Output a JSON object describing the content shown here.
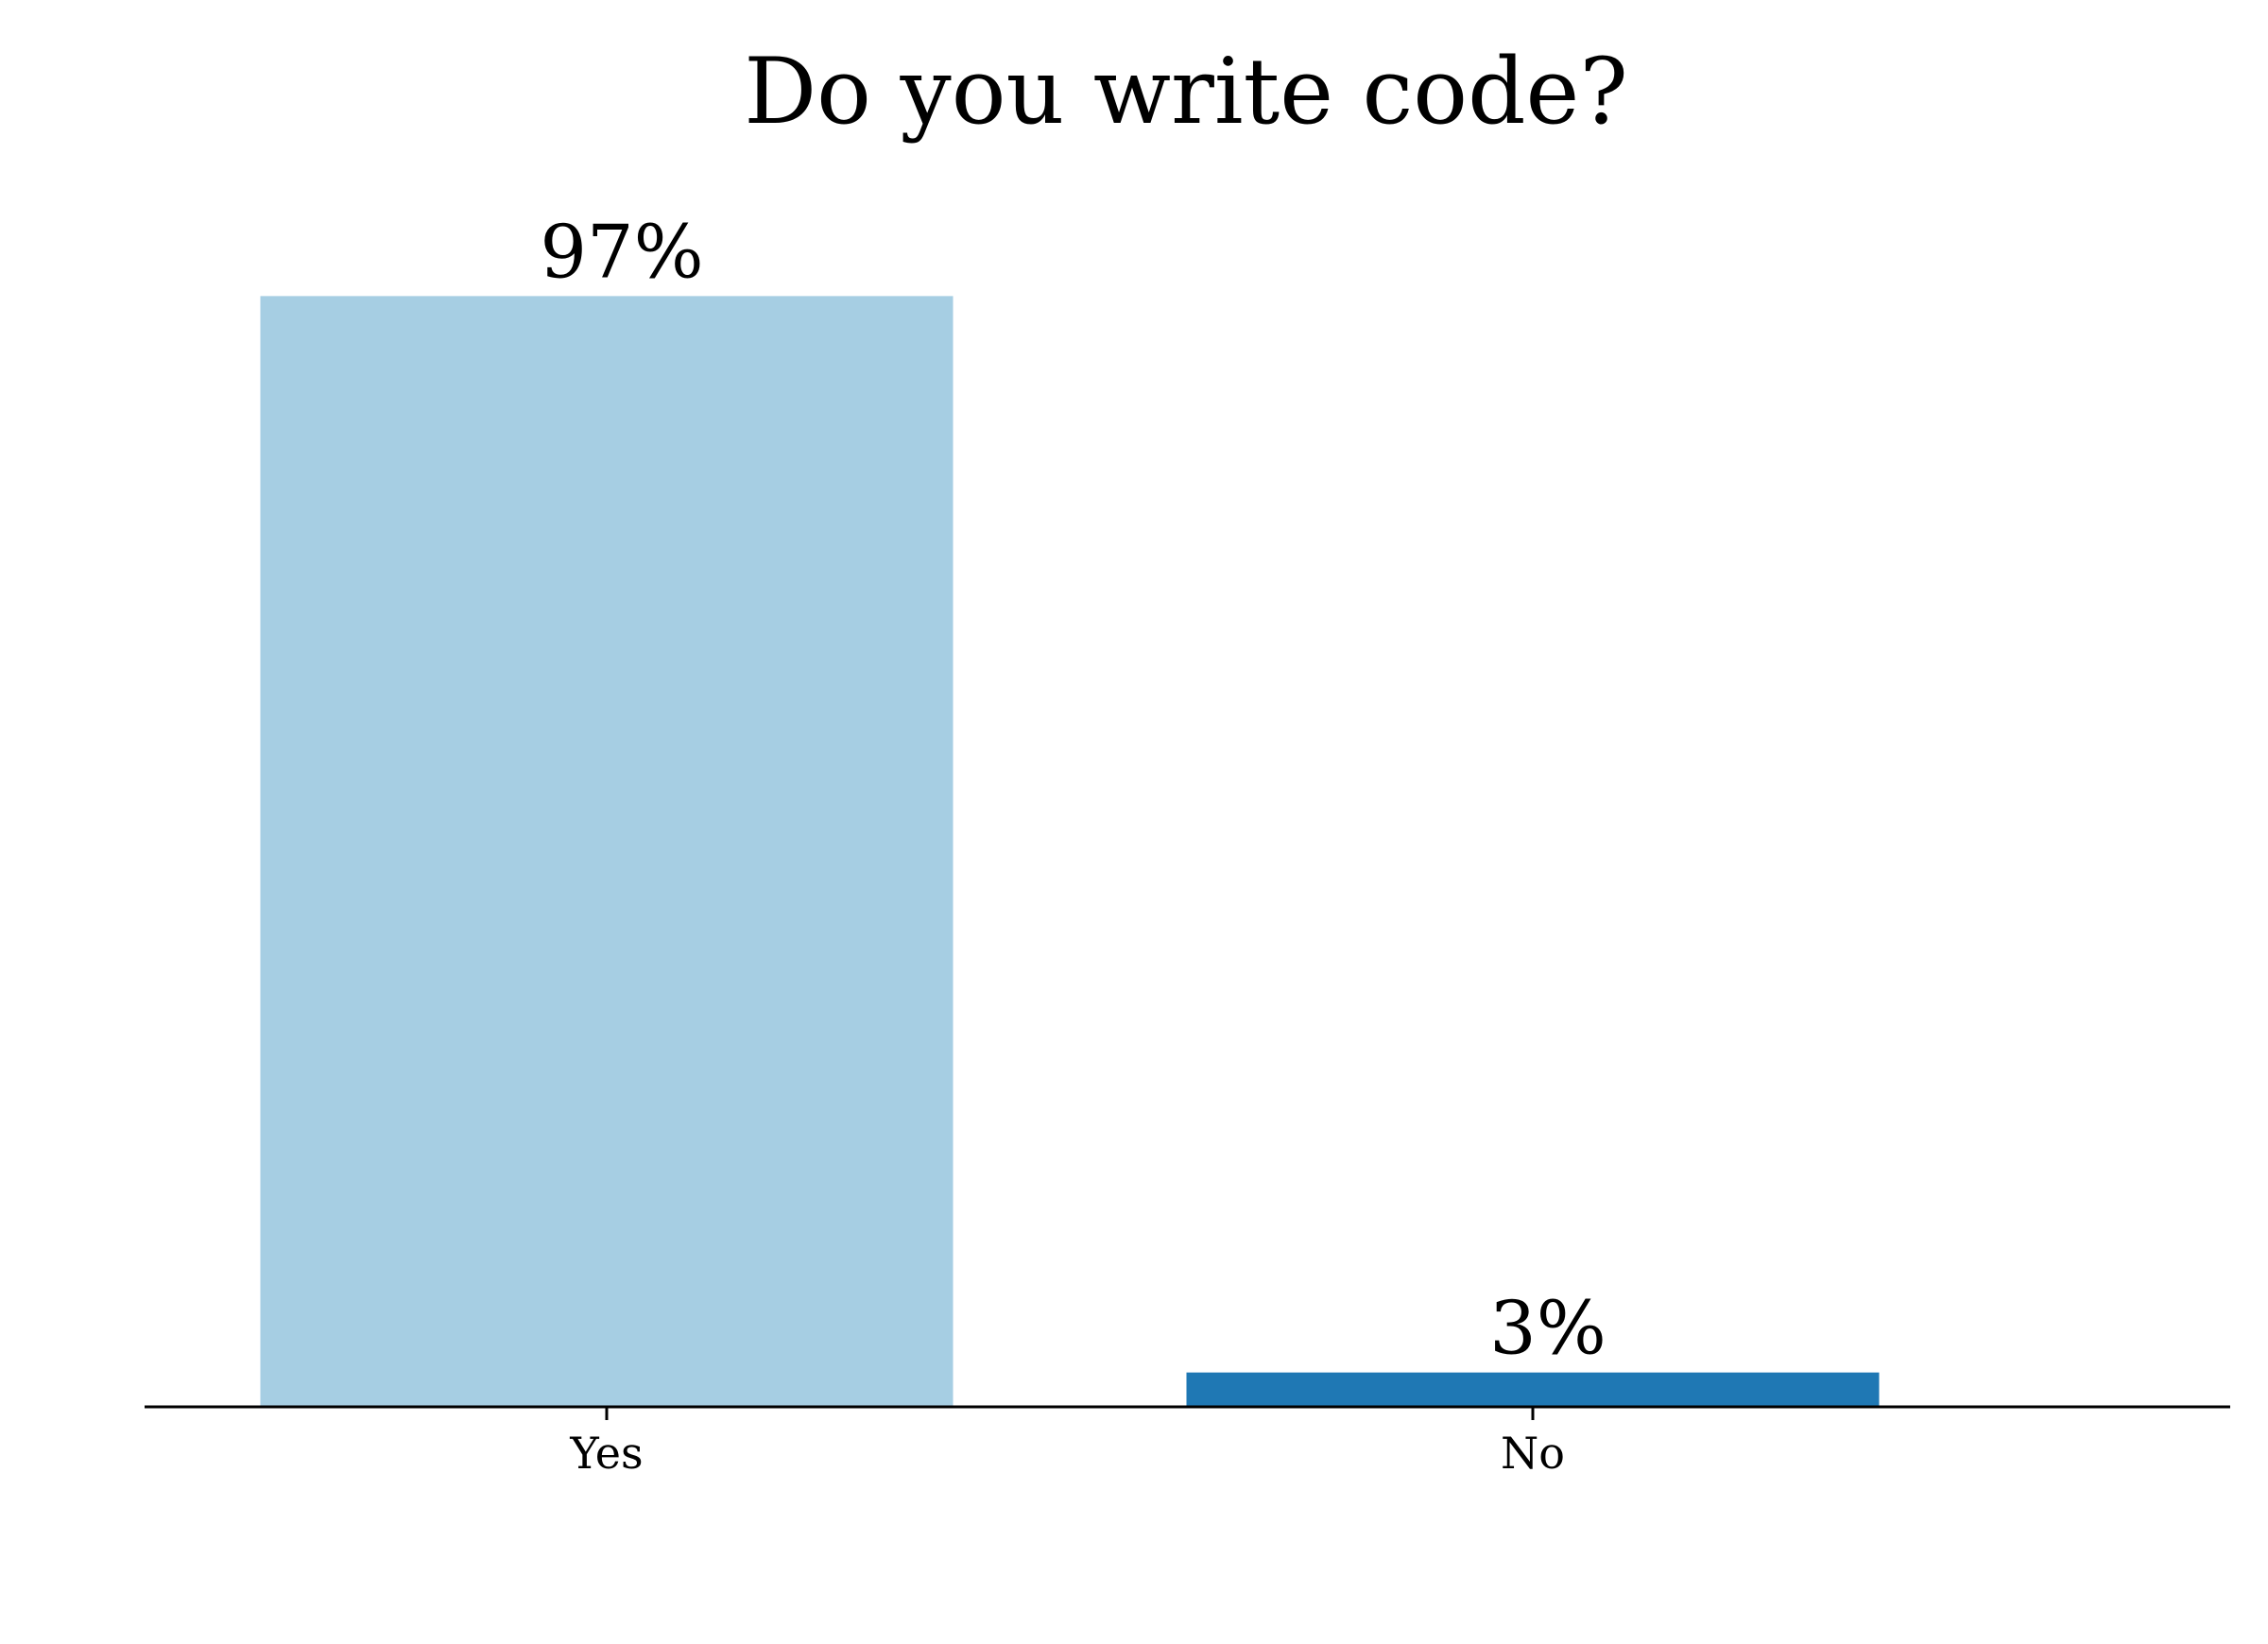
{
  "chart_data": {
    "type": "bar",
    "title": "Do you write code?",
    "xlabel": "",
    "ylabel": "",
    "categories": [
      "Yes",
      "No"
    ],
    "values": [
      97,
      3
    ],
    "data_labels": [
      "97%",
      "3%"
    ],
    "colors": [
      "#a6cee3",
      "#1f78b4"
    ],
    "ylim": [
      0,
      100
    ],
    "grid": false,
    "legend": "none"
  }
}
